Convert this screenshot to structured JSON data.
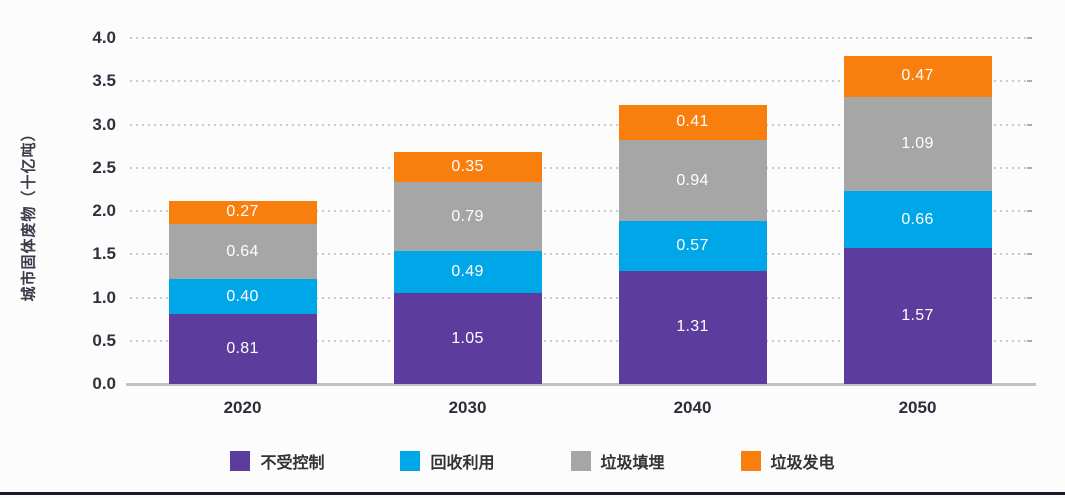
{
  "chart_data": {
    "type": "bar",
    "stacked": true,
    "title": "",
    "xlabel": "",
    "ylabel": "城市固体废物（十亿吨）",
    "categories": [
      "2020",
      "2030",
      "2040",
      "2050"
    ],
    "series": [
      {
        "name": "不受控制",
        "color": "#5C3D9E",
        "values": [
          0.81,
          1.05,
          1.31,
          1.57
        ]
      },
      {
        "name": "回收利用",
        "color": "#00A7E8",
        "values": [
          0.4,
          0.49,
          0.57,
          0.66
        ]
      },
      {
        "name": "垃圾填埋",
        "color": "#A6A6A6",
        "values": [
          0.64,
          0.79,
          0.94,
          1.09
        ]
      },
      {
        "name": "垃圾发电",
        "color": "#F87E0D",
        "values": [
          0.27,
          0.35,
          0.41,
          0.47
        ]
      }
    ],
    "totals": [
      2.12,
      2.68,
      3.23,
      3.79
    ],
    "y_ticks": [
      "4.0",
      "3.5",
      "3.0",
      "2.5",
      "2.0",
      "1.5",
      "1.0",
      "0.5",
      "0.0"
    ],
    "ylim": [
      0.0,
      4.0
    ],
    "grid": "horizontal-dotted",
    "legend_position": "bottom",
    "value_label_color": "#FFFFFF",
    "value_label_format": "2-decimals"
  }
}
